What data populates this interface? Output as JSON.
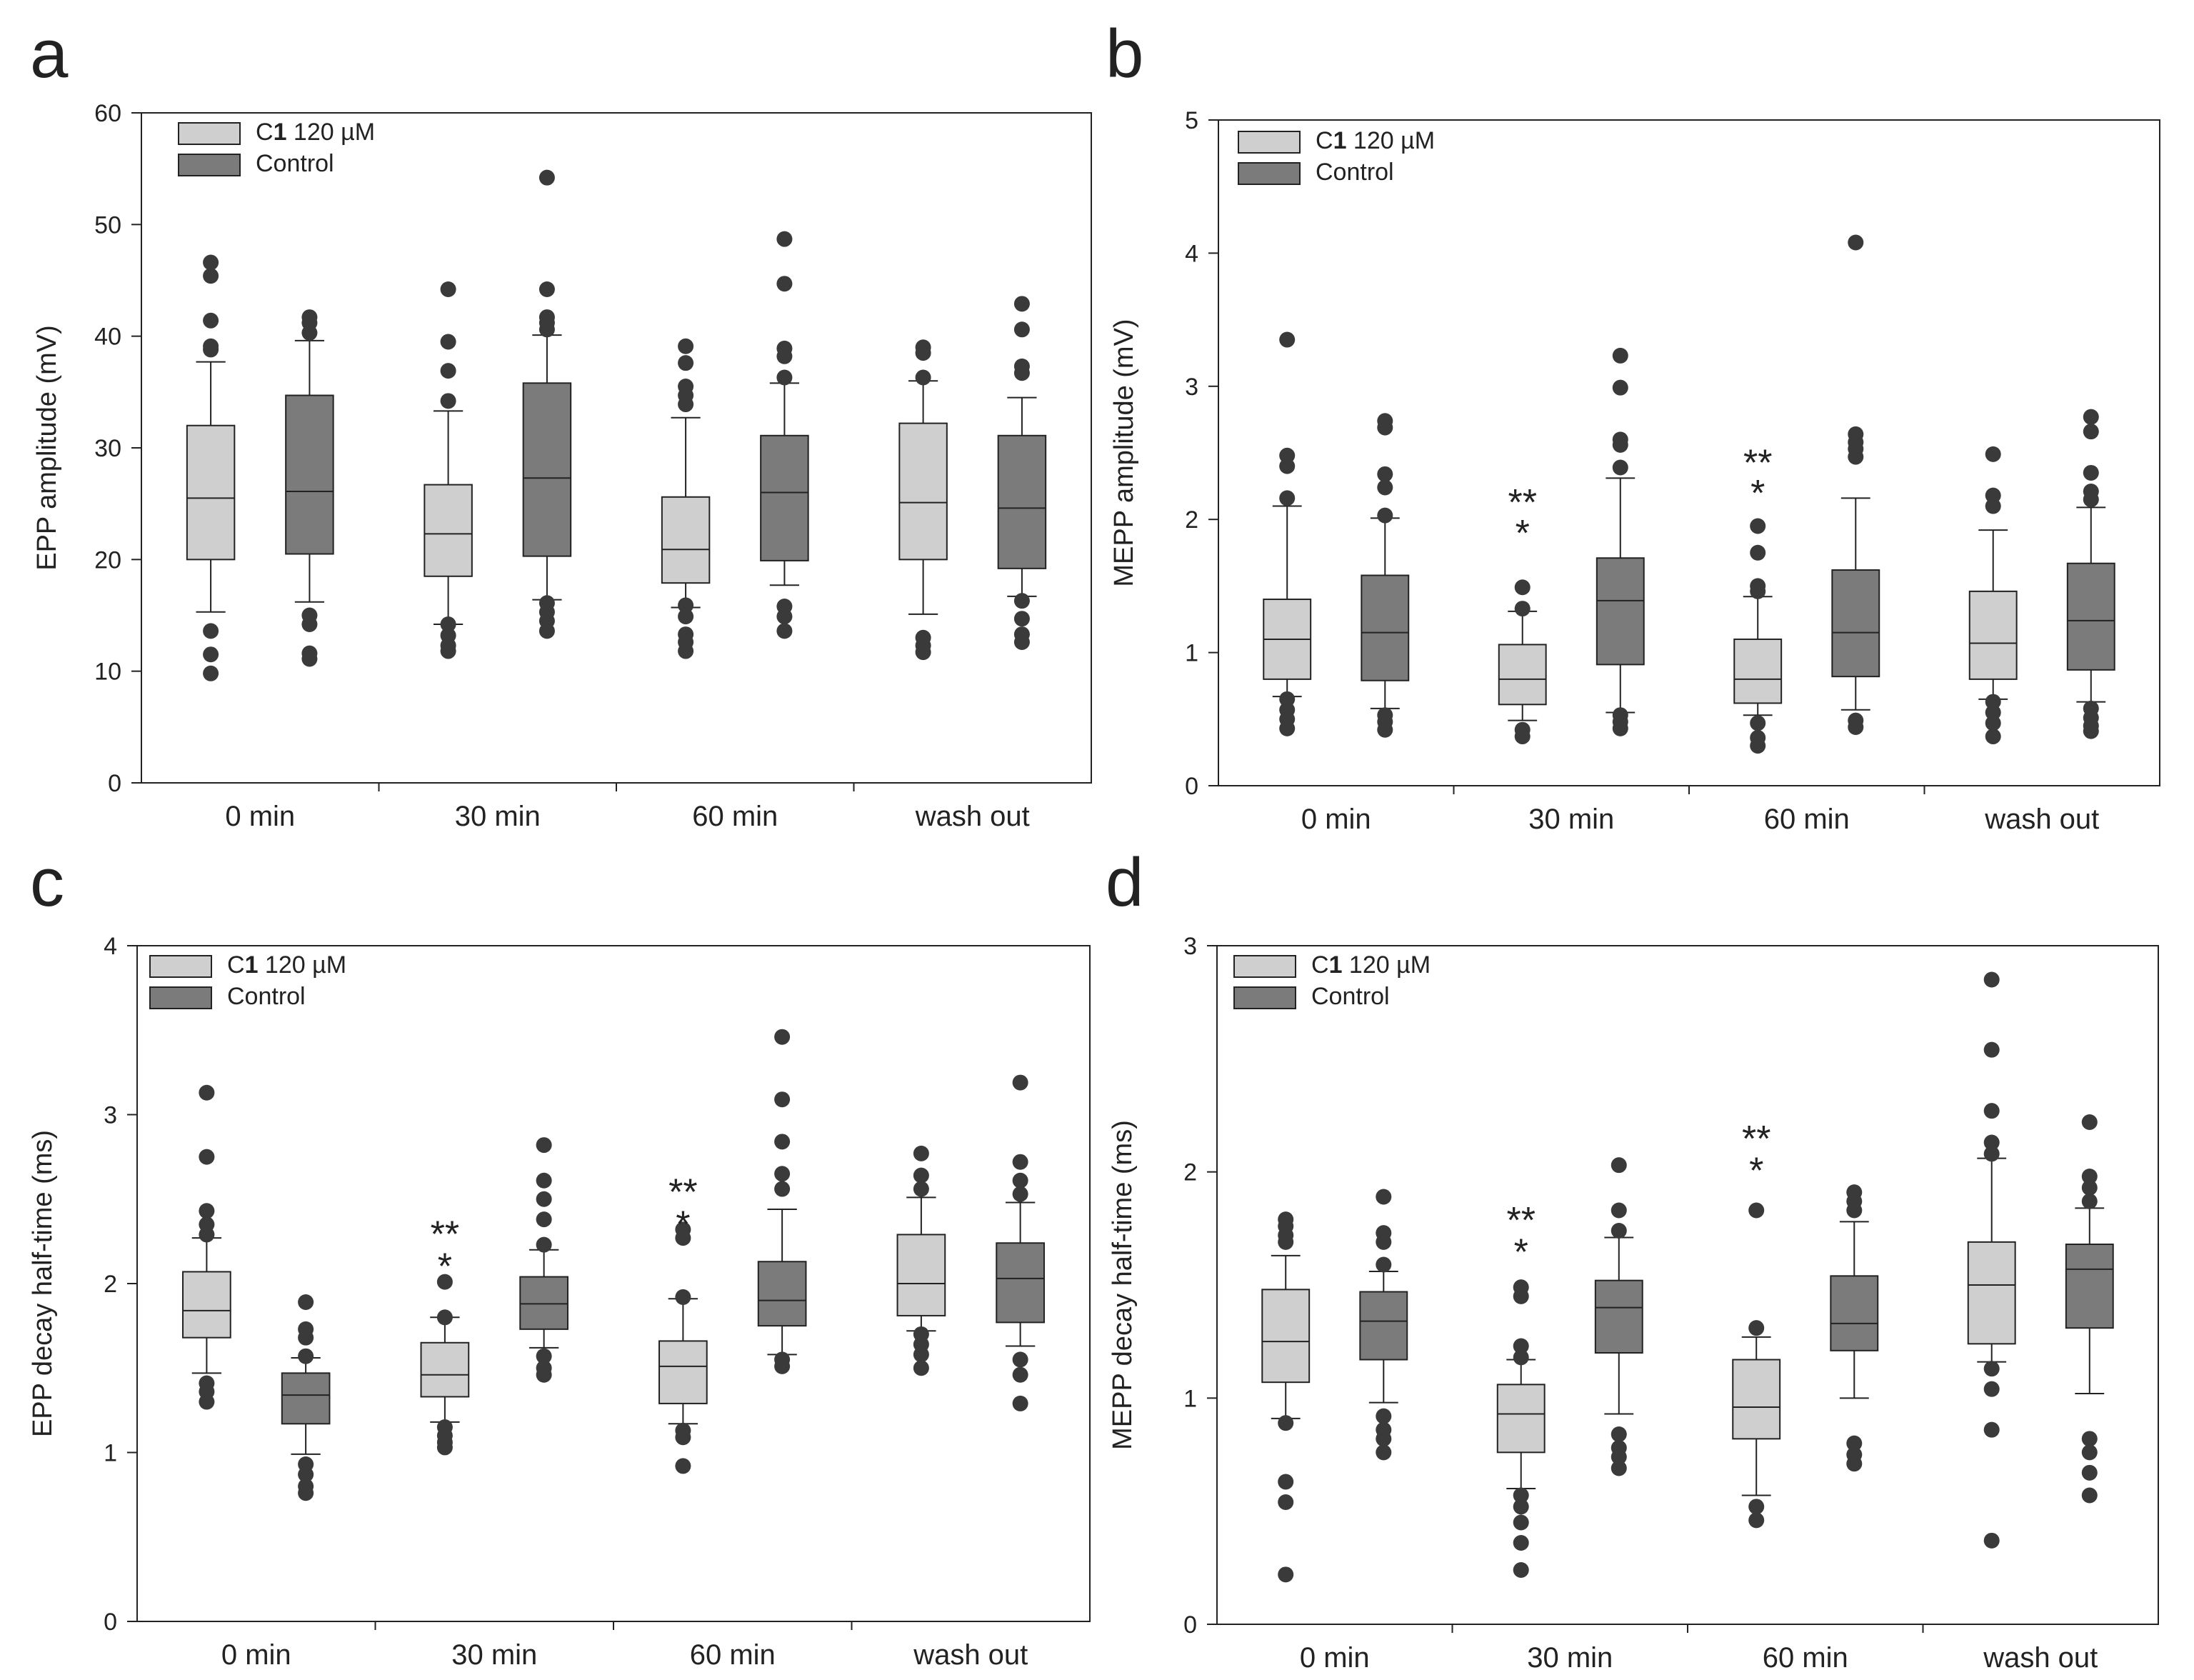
{
  "colors": {
    "treatment": "#cfcfcf",
    "control": "#7b7b7b",
    "outlier": "#3a3a3a",
    "axis": "#222222"
  },
  "legend": {
    "treatment_prefix": "C",
    "treatment_bold": "1",
    "treatment_suffix": " 120 µM",
    "control": "Control"
  },
  "chart_data": [
    {
      "panel": "a",
      "type": "box",
      "ylabel": "EPP amplitude (mV)",
      "ylim": [
        0,
        60
      ],
      "yticks": [
        0,
        10,
        20,
        30,
        40,
        50,
        60
      ],
      "categories": [
        "0 min",
        "30 min",
        "60 min",
        "wash out"
      ],
      "series": [
        {
          "name": "C1 120 µM",
          "boxes": [
            {
              "q1": 20.0,
              "median": 25.5,
              "q3": 32.0,
              "whisker_low": 15.3,
              "whisker_high": 37.7,
              "outliers": [
                9.8,
                11.5,
                13.6,
                38.8,
                39.1,
                41.4,
                45.4,
                46.6
              ]
            },
            {
              "q1": 18.5,
              "median": 22.3,
              "q3": 26.7,
              "whisker_low": 14.2,
              "whisker_high": 33.3,
              "outliers": [
                11.8,
                12.3,
                13.2,
                14.2,
                34.2,
                36.9,
                39.5,
                44.2
              ]
            },
            {
              "q1": 17.9,
              "median": 20.9,
              "q3": 25.6,
              "whisker_low": 15.7,
              "whisker_high": 32.7,
              "outliers": [
                11.8,
                12.6,
                13.3,
                14.9,
                15.9,
                33.9,
                34.7,
                35.5,
                37.6,
                39.1
              ]
            },
            {
              "q1": 20.0,
              "median": 25.1,
              "q3": 32.2,
              "whisker_low": 15.1,
              "whisker_high": 36.0,
              "outliers": [
                11.7,
                12.3,
                13.0,
                36.3,
                38.5,
                39.0
              ]
            }
          ]
        },
        {
          "name": "Control",
          "boxes": [
            {
              "q1": 20.5,
              "median": 26.1,
              "q3": 34.7,
              "whisker_low": 16.2,
              "whisker_high": 39.6,
              "outliers": [
                11.1,
                11.6,
                14.2,
                15.0,
                40.3,
                41.2,
                41.7
              ]
            },
            {
              "q1": 20.3,
              "median": 27.3,
              "q3": 35.8,
              "whisker_low": 16.4,
              "whisker_high": 40.1,
              "outliers": [
                13.6,
                14.5,
                15.3,
                16.1,
                40.6,
                41.2,
                41.7,
                44.2,
                54.2
              ]
            },
            {
              "q1": 19.9,
              "median": 26.0,
              "q3": 31.1,
              "whisker_low": 17.7,
              "whisker_high": 35.8,
              "outliers": [
                13.6,
                14.9,
                15.8,
                36.3,
                38.2,
                38.9,
                44.7,
                48.7
              ]
            },
            {
              "q1": 19.2,
              "median": 24.6,
              "q3": 31.1,
              "whisker_low": 16.7,
              "whisker_high": 34.5,
              "outliers": [
                12.6,
                13.3,
                14.7,
                16.3,
                36.7,
                37.3,
                40.6,
                42.9
              ]
            }
          ]
        }
      ],
      "annotations": []
    },
    {
      "panel": "b",
      "type": "box",
      "ylabel": "MEPP amplitude (mV)",
      "ylim": [
        0,
        5
      ],
      "yticks": [
        0,
        1,
        2,
        3,
        4,
        5
      ],
      "categories": [
        "0 min",
        "30 min",
        "60 min",
        "wash out"
      ],
      "series": [
        {
          "name": "C1 120 µM",
          "boxes": [
            {
              "q1": 0.8,
              "median": 1.1,
              "q3": 1.4,
              "whisker_low": 0.67,
              "whisker_high": 2.1,
              "outliers": [
                0.43,
                0.5,
                0.57,
                0.65,
                2.16,
                2.4,
                2.48,
                3.35
              ]
            },
            {
              "q1": 0.61,
              "median": 0.8,
              "q3": 1.06,
              "whisker_low": 0.49,
              "whisker_high": 1.31,
              "outliers": [
                0.37,
                0.42,
                1.33,
                1.49
              ]
            },
            {
              "q1": 0.62,
              "median": 0.8,
              "q3": 1.1,
              "whisker_low": 0.53,
              "whisker_high": 1.42,
              "outliers": [
                0.3,
                0.36,
                0.47,
                1.46,
                1.5,
                1.75,
                1.95
              ]
            },
            {
              "q1": 0.8,
              "median": 1.07,
              "q3": 1.46,
              "whisker_low": 0.65,
              "whisker_high": 1.92,
              "outliers": [
                0.37,
                0.47,
                0.55,
                0.63,
                2.1,
                2.18,
                2.49
              ]
            }
          ]
        },
        {
          "name": "Control",
          "boxes": [
            {
              "q1": 0.79,
              "median": 1.15,
              "q3": 1.58,
              "whisker_low": 0.58,
              "whisker_high": 2.01,
              "outliers": [
                0.42,
                0.48,
                0.53,
                2.03,
                2.24,
                2.34,
                2.69,
                2.74
              ]
            },
            {
              "q1": 0.91,
              "median": 1.39,
              "q3": 1.71,
              "whisker_low": 0.55,
              "whisker_high": 2.31,
              "outliers": [
                0.43,
                0.48,
                0.53,
                2.39,
                2.56,
                2.6,
                2.99,
                3.23
              ]
            },
            {
              "q1": 0.82,
              "median": 1.15,
              "q3": 1.62,
              "whisker_low": 0.57,
              "whisker_high": 2.16,
              "outliers": [
                0.44,
                0.49,
                2.47,
                2.53,
                2.58,
                2.64,
                4.08
              ]
            },
            {
              "q1": 0.87,
              "median": 1.24,
              "q3": 1.67,
              "whisker_low": 0.63,
              "whisker_high": 2.09,
              "outliers": [
                0.41,
                0.45,
                0.51,
                0.58,
                2.15,
                2.21,
                2.35,
                2.66,
                2.77
              ]
            }
          ]
        }
      ],
      "annotations": [
        {
          "category": 1,
          "value": 2.15,
          "text": "**"
        },
        {
          "category": 1,
          "value": 1.92,
          "text": "*"
        },
        {
          "category": 2,
          "value": 2.45,
          "text": "**"
        },
        {
          "category": 2,
          "value": 2.22,
          "text": "*"
        }
      ]
    },
    {
      "panel": "c",
      "type": "box",
      "ylabel": "EPP decay half-time (ms)",
      "ylim": [
        0,
        4
      ],
      "yticks": [
        0,
        1,
        2,
        3,
        4
      ],
      "categories": [
        "0 min",
        "30 min",
        "60 min",
        "wash out"
      ],
      "series": [
        {
          "name": "C1 120 µM",
          "boxes": [
            {
              "q1": 1.68,
              "median": 1.84,
              "q3": 2.07,
              "whisker_low": 1.47,
              "whisker_high": 2.27,
              "outliers": [
                1.3,
                1.36,
                1.41,
                2.29,
                2.35,
                2.43,
                2.75,
                3.13
              ]
            },
            {
              "q1": 1.33,
              "median": 1.46,
              "q3": 1.65,
              "whisker_low": 1.18,
              "whisker_high": 1.8,
              "outliers": [
                1.03,
                1.06,
                1.1,
                1.15,
                1.8,
                2.01
              ]
            },
            {
              "q1": 1.29,
              "median": 1.51,
              "q3": 1.66,
              "whisker_low": 1.17,
              "whisker_high": 1.91,
              "outliers": [
                0.92,
                1.09,
                1.13,
                1.92,
                2.27,
                2.32
              ]
            },
            {
              "q1": 1.81,
              "median": 2.0,
              "q3": 2.29,
              "whisker_low": 1.72,
              "whisker_high": 2.51,
              "outliers": [
                1.5,
                1.58,
                1.64,
                1.7,
                2.56,
                2.64,
                2.77
              ]
            }
          ]
        },
        {
          "name": "Control",
          "boxes": [
            {
              "q1": 1.17,
              "median": 1.34,
              "q3": 1.47,
              "whisker_low": 0.99,
              "whisker_high": 1.56,
              "outliers": [
                0.76,
                0.8,
                0.87,
                0.93,
                1.57,
                1.68,
                1.73,
                1.89
              ]
            },
            {
              "q1": 1.73,
              "median": 1.88,
              "q3": 2.04,
              "whisker_low": 1.62,
              "whisker_high": 2.2,
              "outliers": [
                1.46,
                1.5,
                1.57,
                2.23,
                2.38,
                2.5,
                2.61,
                2.82
              ]
            },
            {
              "q1": 1.75,
              "median": 1.9,
              "q3": 2.13,
              "whisker_low": 1.58,
              "whisker_high": 2.44,
              "outliers": [
                1.51,
                1.55,
                2.56,
                2.65,
                2.84,
                3.09,
                3.46
              ]
            },
            {
              "q1": 1.77,
              "median": 2.03,
              "q3": 2.24,
              "whisker_low": 1.63,
              "whisker_high": 2.48,
              "outliers": [
                1.29,
                1.46,
                1.55,
                2.53,
                2.61,
                2.72,
                3.19
              ]
            }
          ]
        }
      ],
      "annotations": [
        {
          "category": 1,
          "value": 2.31,
          "text": "**"
        },
        {
          "category": 1,
          "value": 2.12,
          "text": "*"
        },
        {
          "category": 2,
          "value": 2.56,
          "text": "**"
        },
        {
          "category": 2,
          "value": 2.37,
          "text": "*"
        }
      ]
    },
    {
      "panel": "d",
      "type": "box",
      "ylabel": "MEPP decay half-time (ms)",
      "ylim": [
        0,
        3
      ],
      "yticks": [
        0,
        1,
        2,
        3
      ],
      "categories": [
        "0 min",
        "30 min",
        "60 min",
        "wash out"
      ],
      "series": [
        {
          "name": "C1 120 µM",
          "boxes": [
            {
              "q1": 1.07,
              "median": 1.25,
              "q3": 1.48,
              "whisker_low": 0.91,
              "whisker_high": 1.63,
              "outliers": [
                0.22,
                0.54,
                0.63,
                0.89,
                1.69,
                1.72,
                1.76,
                1.79
              ]
            },
            {
              "q1": 0.76,
              "median": 0.93,
              "q3": 1.06,
              "whisker_low": 0.6,
              "whisker_high": 1.17,
              "outliers": [
                0.24,
                0.36,
                0.45,
                0.52,
                0.57,
                1.18,
                1.23,
                1.45,
                1.49
              ]
            },
            {
              "q1": 0.82,
              "median": 0.96,
              "q3": 1.17,
              "whisker_low": 0.57,
              "whisker_high": 1.27,
              "outliers": [
                0.46,
                0.52,
                1.31,
                1.83
              ]
            },
            {
              "q1": 1.24,
              "median": 1.5,
              "q3": 1.69,
              "whisker_low": 1.16,
              "whisker_high": 2.06,
              "outliers": [
                0.37,
                0.86,
                1.04,
                1.13,
                2.08,
                2.13,
                2.27,
                2.54,
                2.85
              ]
            }
          ]
        },
        {
          "name": "Control",
          "boxes": [
            {
              "q1": 1.17,
              "median": 1.34,
              "q3": 1.47,
              "whisker_low": 0.98,
              "whisker_high": 1.56,
              "outliers": [
                0.76,
                0.82,
                0.86,
                0.92,
                1.59,
                1.69,
                1.73,
                1.89
              ]
            },
            {
              "q1": 1.2,
              "median": 1.4,
              "q3": 1.52,
              "whisker_low": 0.93,
              "whisker_high": 1.71,
              "outliers": [
                0.69,
                0.74,
                0.78,
                0.84,
                1.74,
                1.83,
                2.03
              ]
            },
            {
              "q1": 1.21,
              "median": 1.33,
              "q3": 1.54,
              "whisker_low": 1.0,
              "whisker_high": 1.78,
              "outliers": [
                0.71,
                0.75,
                0.8,
                1.83,
                1.87,
                1.91
              ]
            },
            {
              "q1": 1.31,
              "median": 1.57,
              "q3": 1.68,
              "whisker_low": 1.02,
              "whisker_high": 1.84,
              "outliers": [
                0.57,
                0.67,
                0.76,
                0.82,
                1.87,
                1.93,
                1.98,
                2.22
              ]
            }
          ]
        }
      ],
      "annotations": [
        {
          "category": 1,
          "value": 1.8,
          "text": "**"
        },
        {
          "category": 1,
          "value": 1.66,
          "text": "*"
        },
        {
          "category": 2,
          "value": 2.16,
          "text": "**"
        },
        {
          "category": 2,
          "value": 2.02,
          "text": "*"
        }
      ]
    }
  ]
}
